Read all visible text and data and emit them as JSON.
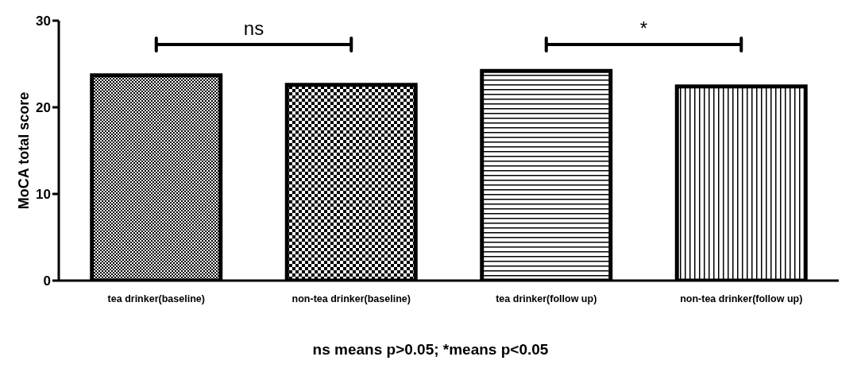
{
  "chart_data": {
    "type": "bar",
    "ylabel": "MoCA total score",
    "categories": [
      "tea drinker(baseline)",
      "non-tea drinker(baseline)",
      "tea drinker(follow up)",
      "non-tea drinker(follow up)"
    ],
    "values": [
      23.7,
      22.6,
      24.2,
      22.4
    ],
    "colors": [
      "#000000",
      "#000000",
      "#000000",
      "#000000"
    ],
    "ylim": [
      0,
      30
    ],
    "yticks": [
      0,
      10,
      20,
      30
    ],
    "annotations": [
      "ns",
      "*",
      "ns means p>0.05; *means p<0.05"
    ]
  }
}
